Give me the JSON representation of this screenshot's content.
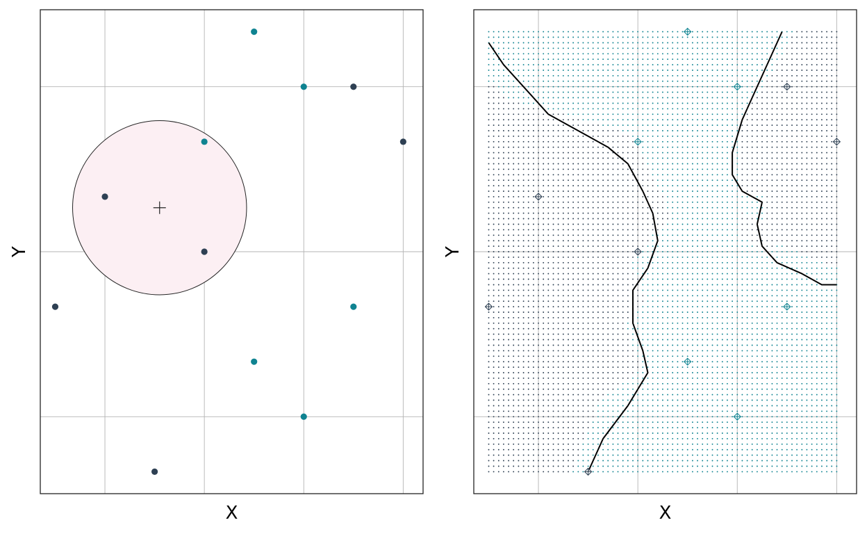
{
  "chart_data": [
    {
      "type": "scatter",
      "title": "",
      "xlabel": "X",
      "ylabel": "Y",
      "xlim": [
        -0.3,
        7.4
      ],
      "ylim": [
        -0.4,
        8.4
      ],
      "grid": true,
      "colors": {
        "class_a": "#0F8391",
        "class_b": "#2E4053",
        "neighborhood_fill": "#FCEFF3"
      },
      "points": [
        {
          "x": 0.0,
          "y": 3.0,
          "class": "b"
        },
        {
          "x": 1.0,
          "y": 5.0,
          "class": "b"
        },
        {
          "x": 2.0,
          "y": 0.0,
          "class": "b"
        },
        {
          "x": 3.0,
          "y": 4.0,
          "class": "b"
        },
        {
          "x": 3.0,
          "y": 6.0,
          "class": "a"
        },
        {
          "x": 4.0,
          "y": 2.0,
          "class": "a"
        },
        {
          "x": 4.0,
          "y": 8.0,
          "class": "a"
        },
        {
          "x": 5.0,
          "y": 1.0,
          "class": "a"
        },
        {
          "x": 5.0,
          "y": 7.0,
          "class": "a"
        },
        {
          "x": 6.0,
          "y": 3.0,
          "class": "a"
        },
        {
          "x": 6.0,
          "y": 7.0,
          "class": "b"
        },
        {
          "x": 7.0,
          "y": 6.0,
          "class": "b"
        }
      ],
      "query_point": {
        "x": 2.1,
        "y": 4.8
      },
      "neighborhood_radius": 1.75
    },
    {
      "type": "scatter",
      "title": "",
      "xlabel": "X",
      "ylabel": "Y",
      "xlim": [
        -0.3,
        7.4
      ],
      "ylim": [
        -0.4,
        8.4
      ],
      "grid": true,
      "grid_extent": {
        "x": [
          0,
          7
        ],
        "y": [
          0,
          8
        ],
        "step": 0.1
      },
      "colors": {
        "class_a": "#0F8391",
        "class_b": "#2E4053",
        "boundary": "#000000"
      },
      "points": [
        {
          "x": 0.0,
          "y": 3.0,
          "class": "b"
        },
        {
          "x": 1.0,
          "y": 5.0,
          "class": "b"
        },
        {
          "x": 2.0,
          "y": 0.0,
          "class": "b"
        },
        {
          "x": 3.0,
          "y": 4.0,
          "class": "b"
        },
        {
          "x": 3.0,
          "y": 6.0,
          "class": "a"
        },
        {
          "x": 4.0,
          "y": 2.0,
          "class": "a"
        },
        {
          "x": 4.0,
          "y": 8.0,
          "class": "a"
        },
        {
          "x": 5.0,
          "y": 1.0,
          "class": "a"
        },
        {
          "x": 5.0,
          "y": 7.0,
          "class": "a"
        },
        {
          "x": 6.0,
          "y": 3.0,
          "class": "a"
        },
        {
          "x": 6.0,
          "y": 7.0,
          "class": "b"
        },
        {
          "x": 7.0,
          "y": 6.0,
          "class": "b"
        }
      ],
      "boundaries": [
        [
          [
            0,
            7.8
          ],
          [
            0.3,
            7.4
          ],
          [
            0.8,
            6.9
          ],
          [
            1.2,
            6.5
          ],
          [
            1.6,
            6.3
          ],
          [
            2.0,
            6.1
          ],
          [
            2.4,
            5.9
          ],
          [
            2.8,
            5.6
          ],
          [
            3.1,
            5.1
          ],
          [
            3.3,
            4.7
          ],
          [
            3.4,
            4.2
          ],
          [
            3.2,
            3.7
          ],
          [
            2.9,
            3.3
          ],
          [
            2.9,
            2.7
          ],
          [
            3.1,
            2.2
          ],
          [
            3.2,
            1.8
          ],
          [
            2.8,
            1.2
          ],
          [
            2.3,
            0.6
          ],
          [
            2.0,
            0.0
          ]
        ],
        [
          [
            5.9,
            8.0
          ],
          [
            5.6,
            7.4
          ],
          [
            5.3,
            6.8
          ],
          [
            5.1,
            6.4
          ],
          [
            4.9,
            5.8
          ],
          [
            4.9,
            5.4
          ],
          [
            5.1,
            5.1
          ],
          [
            5.5,
            4.9
          ],
          [
            5.4,
            4.5
          ],
          [
            5.5,
            4.1
          ],
          [
            5.8,
            3.8
          ],
          [
            6.3,
            3.6
          ],
          [
            6.7,
            3.4
          ],
          [
            7.0,
            3.4
          ]
        ]
      ]
    }
  ]
}
